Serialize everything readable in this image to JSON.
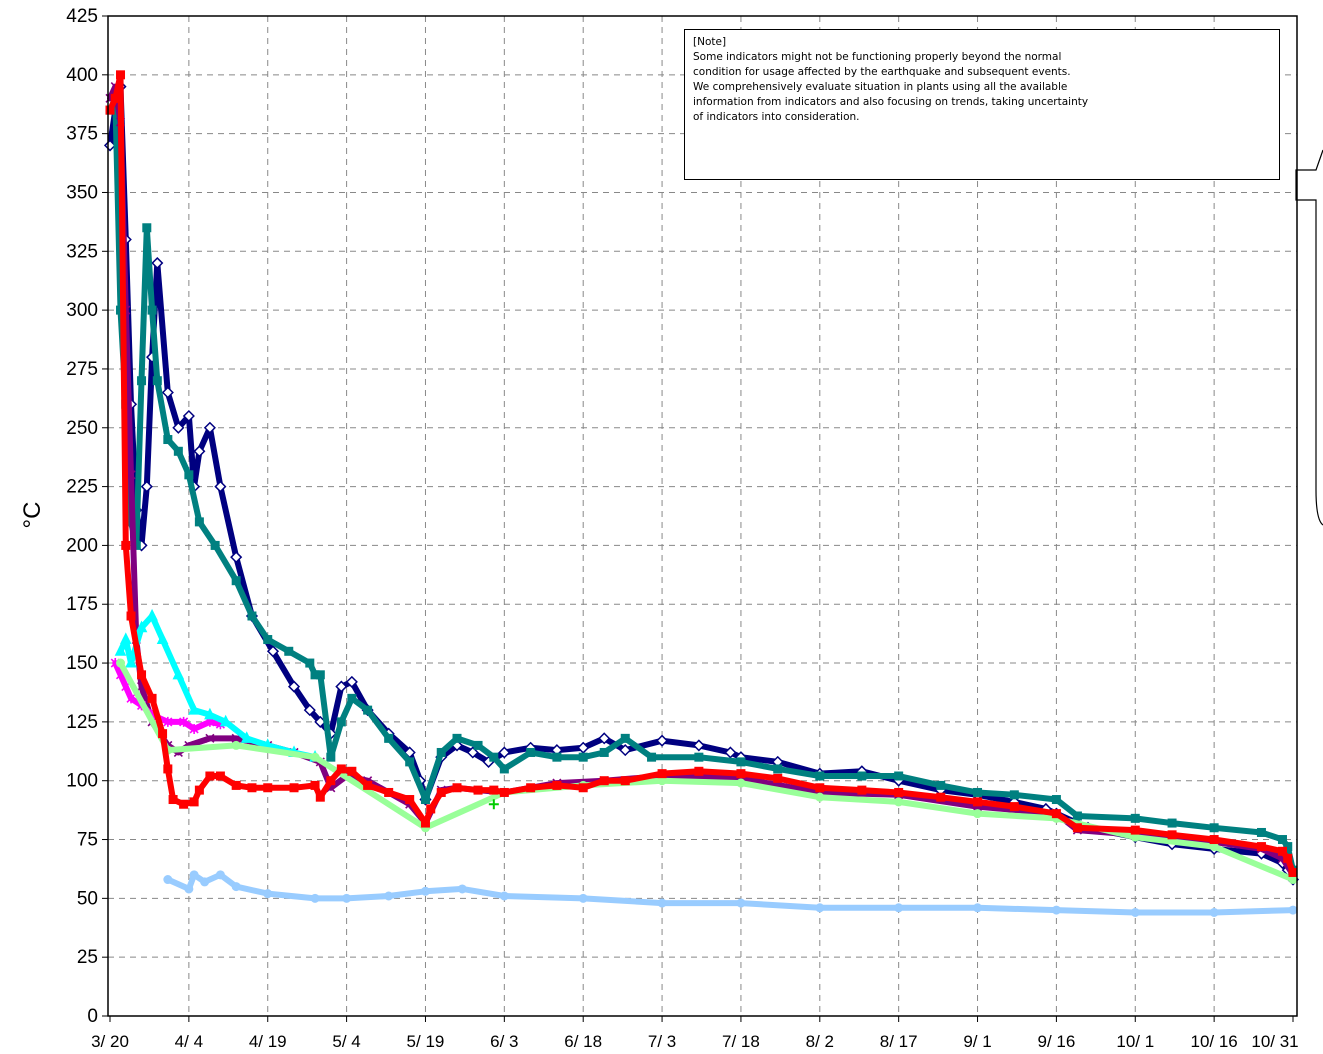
{
  "chart_data": {
    "type": "line",
    "title": "",
    "xlabel": "",
    "ylabel": "°C",
    "ylim": [
      0,
      425
    ],
    "y_ticks": [
      0,
      25,
      50,
      75,
      100,
      125,
      150,
      175,
      200,
      225,
      250,
      275,
      300,
      325,
      350,
      375,
      400,
      425
    ],
    "x_tick_labels": [
      "3/ 20",
      "4/ 4",
      "4/ 19",
      "5/ 4",
      "5/ 19",
      "6/ 3",
      "6/ 18",
      "7/ 3",
      "7/ 18",
      "8/ 2",
      "8/ 17",
      "9/ 1",
      "9/ 16",
      "10/ 1",
      "10/ 16",
      "10/ 31"
    ],
    "x_start": "3/ 20",
    "x_end": "10/ 31",
    "grid": true,
    "legend": "none",
    "note": {
      "title": "[Note]",
      "lines": [
        "Some indicators might not be functioning properly beyond the normal",
        "condition for usage affected by the earthquake and subsequent events.",
        "We comprehensively evaluate situation in plants using all the available",
        "information from indicators and also focusing on trends, taking uncertainty",
        "of indicators into consideration."
      ]
    },
    "series": [
      {
        "color": "#000080",
        "marker": "diamond",
        "x": [
          "3/ 20",
          "3/ 21",
          "3/ 22",
          "3/ 23",
          "3/ 24",
          "3/ 25",
          "3/ 26",
          "3/ 27",
          "3/ 28",
          "3/ 29",
          "3/ 31",
          "4/ 2",
          "4/ 4",
          "4/ 5",
          "4/ 6",
          "4/ 8",
          "4/ 10",
          "4/ 13",
          "4/ 16",
          "4/ 20",
          "4/ 24",
          "4/ 27",
          "4/ 29",
          "5/ 1",
          "5/ 3",
          "5/ 5",
          "5/ 8",
          "5/ 12",
          "5/ 16",
          "5/ 18",
          "5/ 19",
          "5/ 22",
          "5/ 25",
          "5/ 28",
          "5/ 31",
          "6/ 3",
          "6/ 8",
          "6/ 13",
          "6/ 18",
          "6/ 22",
          "6/ 26",
          "7/ 3",
          "7/ 10",
          "7/ 16",
          "7/ 18",
          "7/ 25",
          "8/ 2",
          "8/ 10",
          "8/ 17",
          "8/ 25",
          "9/ 1",
          "9/ 8",
          "9/ 14",
          "9/ 16",
          "9/ 22",
          "10/ 1",
          "10/ 8",
          "10/ 16",
          "10/ 25",
          "10/ 29",
          "10/ 30",
          "10/ 31"
        ],
        "y": [
          370,
          385,
          395,
          330,
          260,
          215,
          200,
          225,
          280,
          320,
          265,
          250,
          255,
          225,
          240,
          250,
          225,
          195,
          170,
          155,
          140,
          130,
          125,
          120,
          140,
          142,
          130,
          120,
          112,
          100,
          92,
          110,
          115,
          112,
          108,
          112,
          114,
          113,
          114,
          118,
          113,
          117,
          115,
          112,
          110,
          108,
          103,
          104,
          100,
          96,
          94,
          91,
          88,
          86,
          80,
          76,
          73,
          71,
          69,
          65,
          62,
          58
        ]
      },
      {
        "color": "#008080",
        "marker": "square",
        "x": [
          "3/ 20",
          "3/ 21",
          "3/ 22",
          "3/ 23",
          "3/ 24",
          "3/ 25",
          "3/ 26",
          "3/ 27",
          "3/ 28",
          "3/ 29",
          "3/ 31",
          "4/ 2",
          "4/ 4",
          "4/ 6",
          "4/ 9",
          "4/ 13",
          "4/ 16",
          "4/ 19",
          "4/ 23",
          "4/ 27",
          "4/ 28",
          "4/ 29",
          "5/ 1",
          "5/ 3",
          "5/ 5",
          "5/ 8",
          "5/ 12",
          "5/ 16",
          "5/ 19",
          "5/ 22",
          "5/ 25",
          "5/ 29",
          "6/ 1",
          "6/ 3",
          "6/ 8",
          "6/ 13",
          "6/ 18",
          "6/ 22",
          "6/ 26",
          "7/ 1",
          "7/ 10",
          "7/ 18",
          "7/ 25",
          "8/ 2",
          "8/ 10",
          "8/ 17",
          "8/ 25",
          "9/ 1",
          "9/ 8",
          "9/ 16",
          "9/ 20",
          "10/ 1",
          "10/ 8",
          "10/ 16",
          "10/ 25",
          "10/ 29",
          "10/ 30",
          "10/ 31"
        ],
        "y": [
          385,
          390,
          300,
          260,
          210,
          200,
          270,
          335,
          300,
          270,
          245,
          240,
          230,
          210,
          200,
          185,
          170,
          160,
          155,
          150,
          145,
          145,
          110,
          125,
          135,
          130,
          118,
          108,
          92,
          112,
          118,
          115,
          110,
          105,
          112,
          110,
          110,
          112,
          118,
          110,
          110,
          108,
          105,
          102,
          102,
          102,
          98,
          95,
          94,
          92,
          85,
          84,
          82,
          80,
          78,
          75,
          72,
          62
        ]
      },
      {
        "color": "#800080",
        "marker": "x",
        "x": [
          "3/ 20",
          "3/ 21",
          "3/ 22",
          "3/ 23",
          "3/ 24",
          "3/ 25",
          "3/ 26",
          "3/ 28",
          "3/ 31",
          "4/ 2",
          "4/ 4",
          "4/ 8",
          "4/ 13",
          "4/ 19",
          "4/ 24",
          "4/ 29",
          "5/ 1",
          "5/ 4",
          "5/ 8",
          "5/ 12",
          "5/ 16",
          "5/ 19",
          "5/ 22",
          "5/ 25",
          "5/ 29",
          "6/ 3",
          "6/ 13",
          "6/ 22",
          "7/ 3",
          "7/ 18",
          "8/ 2",
          "8/ 17",
          "9/ 1",
          "9/ 16",
          "9/ 20",
          "10/ 1",
          "10/ 16",
          "10/ 25",
          "10/ 29",
          "10/ 31"
        ],
        "y": [
          390,
          395,
          380,
          300,
          230,
          160,
          140,
          125,
          115,
          112,
          115,
          118,
          118,
          115,
          112,
          108,
          97,
          102,
          100,
          95,
          90,
          82,
          96,
          97,
          96,
          95,
          99,
          100,
          102,
          101,
          95,
          94,
          89,
          86,
          79,
          77,
          74,
          71,
          67,
          60
        ]
      },
      {
        "color": "#ff00ff",
        "marker": "asterisk",
        "x": [
          "3/ 21",
          "3/ 22",
          "3/ 23",
          "3/ 24",
          "3/ 26",
          "3/ 28",
          "3/ 31",
          "4/ 3",
          "4/ 5",
          "4/ 8",
          "4/ 10"
        ],
        "y": [
          150,
          145,
          140,
          135,
          132,
          128,
          125,
          125,
          122,
          125,
          124
        ]
      },
      {
        "color": "#00ffff",
        "marker": "triangle",
        "x": [
          "3/ 22",
          "3/ 23",
          "3/ 24",
          "3/ 26",
          "3/ 28",
          "3/ 30",
          "4/ 2",
          "4/ 5",
          "4/ 8",
          "4/ 11",
          "4/ 15",
          "4/ 19",
          "4/ 24",
          "4/ 28"
        ],
        "y": [
          155,
          160,
          150,
          165,
          170,
          160,
          145,
          130,
          128,
          125,
          118,
          115,
          112,
          110
        ]
      },
      {
        "color": "#99ff99",
        "marker": "circle",
        "x": [
          "3/ 22",
          "3/ 31",
          "4/ 13",
          "4/ 28",
          "5/ 19",
          "6/ 3",
          "6/ 18",
          "7/ 3",
          "7/ 18",
          "8/ 2",
          "8/ 17",
          "9/ 1",
          "9/ 16",
          "10/ 1",
          "10/ 16",
          "10/ 31"
        ],
        "y": [
          150,
          113,
          115,
          110,
          80,
          95,
          98,
          100,
          99,
          93,
          91,
          86,
          84,
          76,
          72,
          58
        ]
      },
      {
        "color": "#00cc00",
        "marker": "plus",
        "x": [
          "6/ 1"
        ],
        "y": [
          90
        ]
      },
      {
        "color": "#ff0000",
        "marker": "square",
        "x": [
          "3/ 20",
          "3/ 21",
          "3/ 22",
          "3/ 23",
          "3/ 24",
          "3/ 26",
          "3/ 28",
          "3/ 30",
          "3/ 31",
          "4/ 1",
          "4/ 3",
          "4/ 5",
          "4/ 6",
          "4/ 8",
          "4/ 10",
          "4/ 13",
          "4/ 16",
          "4/ 19",
          "4/ 24",
          "4/ 28",
          "4/ 29",
          "5/ 1",
          "5/ 3",
          "5/ 5",
          "5/ 8",
          "5/ 12",
          "5/ 16",
          "5/ 19",
          "5/ 20",
          "5/ 22",
          "5/ 25",
          "5/ 29",
          "6/ 1",
          "6/ 3",
          "6/ 8",
          "6/ 13",
          "6/ 18",
          "6/ 22",
          "6/ 26",
          "7/ 3",
          "7/ 10",
          "7/ 18",
          "7/ 25",
          "8/ 2",
          "8/ 10",
          "8/ 17",
          "8/ 25",
          "9/ 1",
          "9/ 8",
          "9/ 16",
          "9/ 20",
          "10/ 1",
          "10/ 8",
          "10/ 16",
          "10/ 25",
          "10/ 29",
          "10/ 30",
          "10/ 31"
        ],
        "y": [
          385,
          390,
          400,
          200,
          170,
          145,
          135,
          120,
          105,
          92,
          90,
          91,
          96,
          102,
          102,
          98,
          97,
          97,
          97,
          98,
          93,
          100,
          105,
          104,
          98,
          95,
          92,
          82,
          88,
          95,
          97,
          96,
          96,
          95,
          97,
          98,
          97,
          100,
          100,
          103,
          104,
          103,
          101,
          97,
          96,
          95,
          93,
          91,
          89,
          86,
          80,
          79,
          77,
          75,
          72,
          70,
          67,
          61
        ]
      },
      {
        "color": "#99ccff",
        "marker": "circle",
        "x": [
          "3/ 31",
          "4/ 4",
          "4/ 5",
          "4/ 7",
          "4/ 10",
          "4/ 13",
          "4/ 19",
          "4/ 28",
          "5/ 4",
          "5/ 12",
          "5/ 19",
          "5/ 26",
          "6/ 3",
          "6/ 18",
          "7/ 3",
          "7/ 18",
          "8/ 2",
          "8/ 17",
          "9/ 1",
          "9/ 16",
          "10/ 1",
          "10/ 16",
          "10/ 31"
        ],
        "y": [
          58,
          54,
          60,
          57,
          60,
          55,
          52,
          50,
          50,
          51,
          53,
          54,
          51,
          50,
          48,
          48,
          46,
          46,
          46,
          45,
          44,
          44,
          45
        ]
      }
    ]
  }
}
